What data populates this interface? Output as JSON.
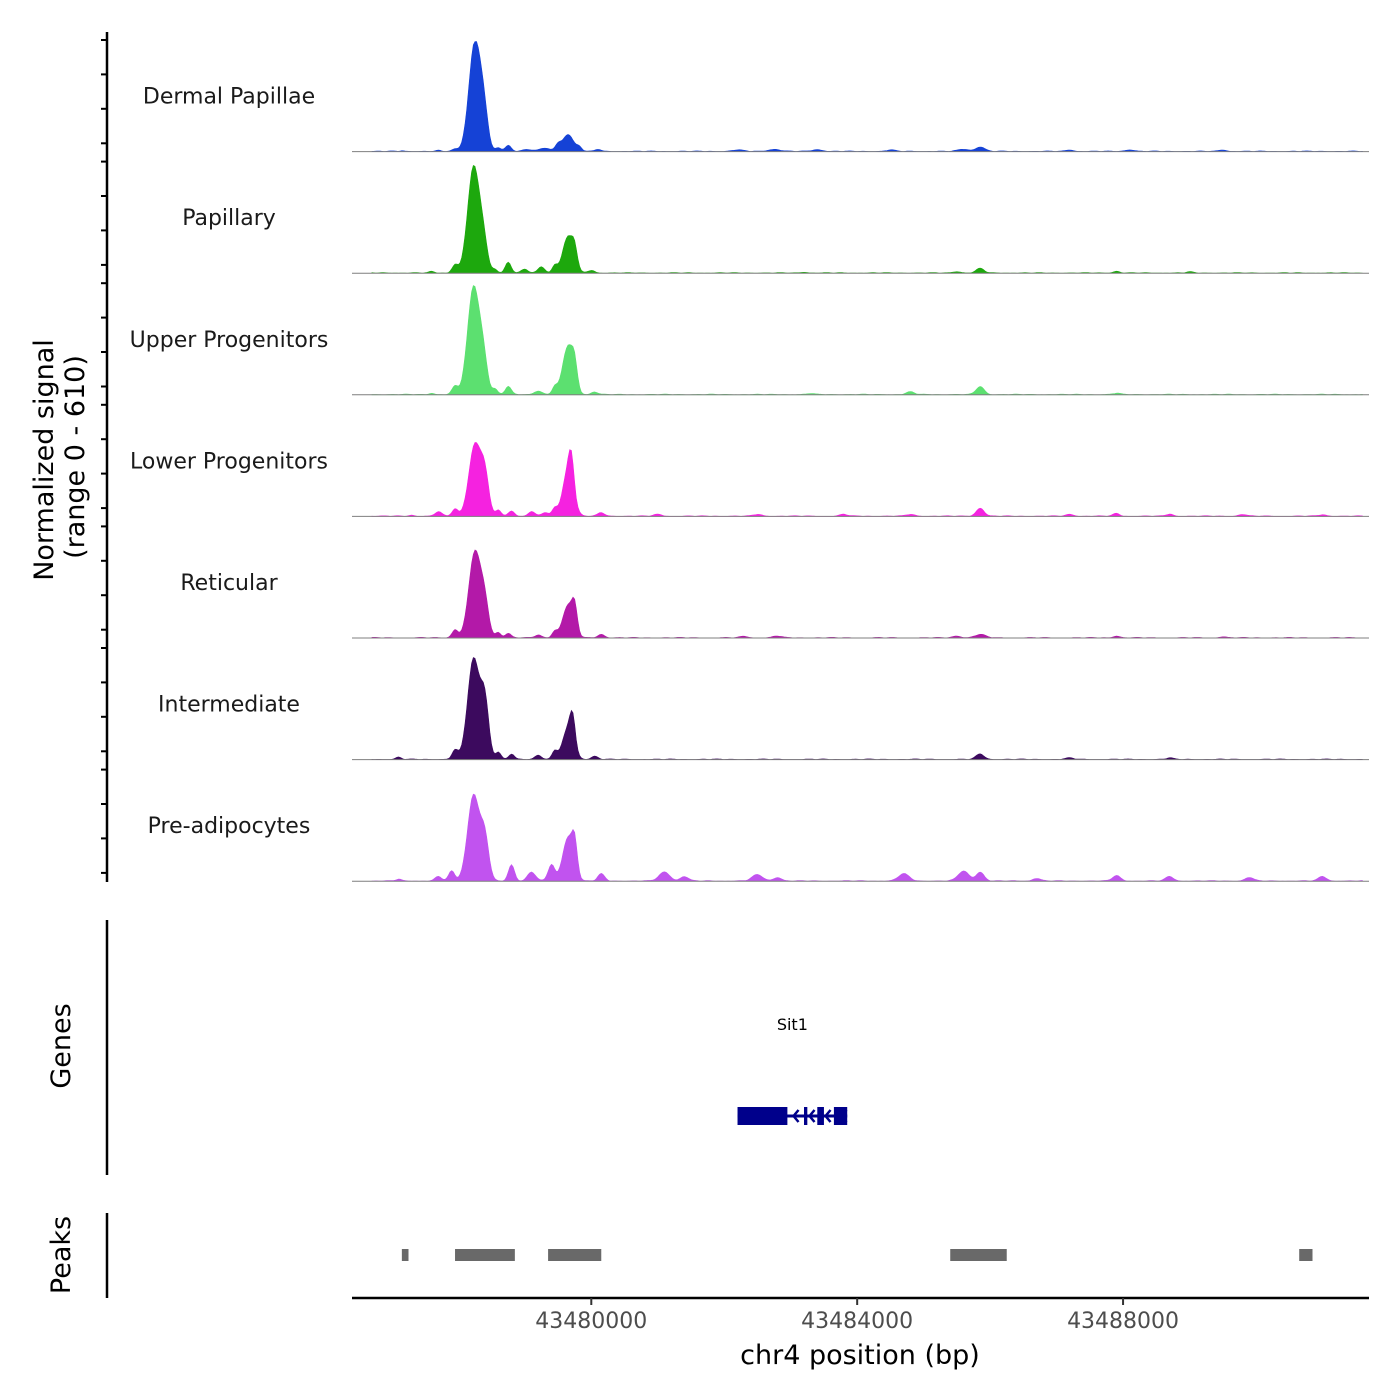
{
  "chart_data": {
    "type": "area",
    "title": "",
    "chromosome": "chr4",
    "xlabel": "chr4 position (bp)",
    "ylabel": "Normalized signal",
    "ylabel_range": "(range 0 - 610)",
    "yrange": [
      0,
      610
    ],
    "xlim": [
      43476400,
      43491700
    ],
    "x_ticks": [
      43480000,
      43484000,
      43488000
    ],
    "x_tick_labels": [
      "43480000",
      "43484000",
      "43488000"
    ],
    "series": [
      {
        "name": "Dermal Papillae",
        "color": "#1542d6",
        "peaks": [
          {
            "center": 43477150,
            "width": 30,
            "height": 4
          },
          {
            "center": 43477700,
            "width": 30,
            "height": 5
          },
          {
            "center": 43477950,
            "width": 45,
            "height": 12
          },
          {
            "center": 43478250,
            "width": 90,
            "height": 610
          },
          {
            "center": 43478390,
            "width": 60,
            "height": 160
          },
          {
            "center": 43478600,
            "width": 40,
            "height": 18
          },
          {
            "center": 43478750,
            "width": 45,
            "height": 35
          },
          {
            "center": 43479000,
            "width": 60,
            "height": 10
          },
          {
            "center": 43479300,
            "width": 120,
            "height": 15
          },
          {
            "center": 43479650,
            "width": 80,
            "height": 95
          },
          {
            "center": 43479500,
            "width": 40,
            "height": 30
          },
          {
            "center": 43479820,
            "width": 40,
            "height": 22
          },
          {
            "center": 43480100,
            "width": 40,
            "height": 12
          },
          {
            "center": 43482200,
            "width": 80,
            "height": 8
          },
          {
            "center": 43482750,
            "width": 90,
            "height": 12
          },
          {
            "center": 43483400,
            "width": 80,
            "height": 10
          },
          {
            "center": 43484500,
            "width": 60,
            "height": 8
          },
          {
            "center": 43485600,
            "width": 80,
            "height": 12
          },
          {
            "center": 43485850,
            "width": 70,
            "height": 25
          },
          {
            "center": 43487200,
            "width": 60,
            "height": 8
          },
          {
            "center": 43488100,
            "width": 70,
            "height": 9
          },
          {
            "center": 43489500,
            "width": 60,
            "height": 8
          }
        ]
      },
      {
        "name": "Papillary",
        "color": "#1da80d",
        "peaks": [
          {
            "center": 43477600,
            "width": 40,
            "height": 8
          },
          {
            "center": 43477950,
            "width": 45,
            "height": 45
          },
          {
            "center": 43478230,
            "width": 90,
            "height": 590
          },
          {
            "center": 43478380,
            "width": 60,
            "height": 140
          },
          {
            "center": 43478550,
            "width": 40,
            "height": 20
          },
          {
            "center": 43478750,
            "width": 45,
            "height": 60
          },
          {
            "center": 43479000,
            "width": 50,
            "height": 20
          },
          {
            "center": 43479250,
            "width": 50,
            "height": 35
          },
          {
            "center": 43479450,
            "width": 40,
            "height": 40
          },
          {
            "center": 43479650,
            "width": 80,
            "height": 200
          },
          {
            "center": 43479750,
            "width": 40,
            "height": 90
          },
          {
            "center": 43480000,
            "width": 50,
            "height": 15
          },
          {
            "center": 43485850,
            "width": 60,
            "height": 25
          },
          {
            "center": 43485500,
            "width": 60,
            "height": 8
          },
          {
            "center": 43487900,
            "width": 50,
            "height": 10
          },
          {
            "center": 43489000,
            "width": 50,
            "height": 6
          },
          {
            "center": 43483200,
            "width": 50,
            "height": 5
          }
        ]
      },
      {
        "name": "Upper Progenitors",
        "color": "#5ce070",
        "peaks": [
          {
            "center": 43477600,
            "width": 40,
            "height": 8
          },
          {
            "center": 43477950,
            "width": 45,
            "height": 45
          },
          {
            "center": 43478230,
            "width": 90,
            "height": 600
          },
          {
            "center": 43478380,
            "width": 60,
            "height": 160
          },
          {
            "center": 43478550,
            "width": 40,
            "height": 30
          },
          {
            "center": 43478750,
            "width": 45,
            "height": 45
          },
          {
            "center": 43479200,
            "width": 60,
            "height": 20
          },
          {
            "center": 43479450,
            "width": 40,
            "height": 40
          },
          {
            "center": 43479650,
            "width": 80,
            "height": 270
          },
          {
            "center": 43479750,
            "width": 40,
            "height": 110
          },
          {
            "center": 43480050,
            "width": 50,
            "height": 15
          },
          {
            "center": 43484800,
            "width": 60,
            "height": 15
          },
          {
            "center": 43485850,
            "width": 60,
            "height": 45
          },
          {
            "center": 43483300,
            "width": 50,
            "height": 6
          },
          {
            "center": 43487900,
            "width": 50,
            "height": 8
          }
        ]
      },
      {
        "name": "Lower Progenitors",
        "color": "#f522e0",
        "peaks": [
          {
            "center": 43477300,
            "width": 40,
            "height": 6
          },
          {
            "center": 43477700,
            "width": 50,
            "height": 25
          },
          {
            "center": 43477950,
            "width": 45,
            "height": 40
          },
          {
            "center": 43478250,
            "width": 90,
            "height": 400
          },
          {
            "center": 43478400,
            "width": 60,
            "height": 200
          },
          {
            "center": 43478600,
            "width": 40,
            "height": 35
          },
          {
            "center": 43478800,
            "width": 45,
            "height": 30
          },
          {
            "center": 43479100,
            "width": 50,
            "height": 25
          },
          {
            "center": 43479300,
            "width": 50,
            "height": 20
          },
          {
            "center": 43479450,
            "width": 40,
            "height": 40
          },
          {
            "center": 43479650,
            "width": 80,
            "height": 250
          },
          {
            "center": 43479700,
            "width": 40,
            "height": 160
          },
          {
            "center": 43480150,
            "width": 50,
            "height": 20
          },
          {
            "center": 43481000,
            "width": 60,
            "height": 10
          },
          {
            "center": 43482500,
            "width": 60,
            "height": 10
          },
          {
            "center": 43483800,
            "width": 60,
            "height": 10
          },
          {
            "center": 43484800,
            "width": 60,
            "height": 10
          },
          {
            "center": 43485850,
            "width": 60,
            "height": 45
          },
          {
            "center": 43487200,
            "width": 60,
            "height": 10
          },
          {
            "center": 43487900,
            "width": 50,
            "height": 15
          },
          {
            "center": 43488700,
            "width": 50,
            "height": 12
          },
          {
            "center": 43489800,
            "width": 60,
            "height": 10
          },
          {
            "center": 43491000,
            "width": 60,
            "height": 8
          }
        ]
      },
      {
        "name": "Reticular",
        "color": "#b319a8",
        "peaks": [
          {
            "center": 43477950,
            "width": 45,
            "height": 45
          },
          {
            "center": 43478250,
            "width": 90,
            "height": 480
          },
          {
            "center": 43478400,
            "width": 60,
            "height": 160
          },
          {
            "center": 43478600,
            "width": 40,
            "height": 30
          },
          {
            "center": 43478750,
            "width": 45,
            "height": 25
          },
          {
            "center": 43479200,
            "width": 50,
            "height": 15
          },
          {
            "center": 43479450,
            "width": 40,
            "height": 35
          },
          {
            "center": 43479650,
            "width": 80,
            "height": 180
          },
          {
            "center": 43479750,
            "width": 40,
            "height": 130
          },
          {
            "center": 43480150,
            "width": 50,
            "height": 20
          },
          {
            "center": 43482300,
            "width": 60,
            "height": 8
          },
          {
            "center": 43482800,
            "width": 60,
            "height": 10
          },
          {
            "center": 43485500,
            "width": 60,
            "height": 10
          },
          {
            "center": 43485850,
            "width": 80,
            "height": 18
          },
          {
            "center": 43487900,
            "width": 50,
            "height": 10
          },
          {
            "center": 43489500,
            "width": 50,
            "height": 6
          }
        ]
      },
      {
        "name": "Intermediate",
        "color": "#3c0a5e",
        "peaks": [
          {
            "center": 43477100,
            "width": 40,
            "height": 12
          },
          {
            "center": 43477950,
            "width": 45,
            "height": 50
          },
          {
            "center": 43478230,
            "width": 90,
            "height": 560
          },
          {
            "center": 43478400,
            "width": 60,
            "height": 300
          },
          {
            "center": 43478600,
            "width": 40,
            "height": 40
          },
          {
            "center": 43478800,
            "width": 40,
            "height": 30
          },
          {
            "center": 43479200,
            "width": 50,
            "height": 25
          },
          {
            "center": 43479450,
            "width": 40,
            "height": 45
          },
          {
            "center": 43479650,
            "width": 80,
            "height": 170
          },
          {
            "center": 43479720,
            "width": 40,
            "height": 150
          },
          {
            "center": 43480050,
            "width": 50,
            "height": 18
          },
          {
            "center": 43485850,
            "width": 60,
            "height": 30
          },
          {
            "center": 43487200,
            "width": 60,
            "height": 8
          },
          {
            "center": 43488700,
            "width": 50,
            "height": 8
          }
        ]
      },
      {
        "name": "Pre-adipocytes",
        "color": "#c153ef",
        "peaks": [
          {
            "center": 43477100,
            "width": 40,
            "height": 10
          },
          {
            "center": 43477700,
            "width": 50,
            "height": 25
          },
          {
            "center": 43477900,
            "width": 45,
            "height": 55
          },
          {
            "center": 43478230,
            "width": 90,
            "height": 480
          },
          {
            "center": 43478400,
            "width": 60,
            "height": 220
          },
          {
            "center": 43478800,
            "width": 45,
            "height": 90
          },
          {
            "center": 43479100,
            "width": 60,
            "height": 50
          },
          {
            "center": 43479400,
            "width": 50,
            "height": 90
          },
          {
            "center": 43479650,
            "width": 80,
            "height": 240
          },
          {
            "center": 43479750,
            "width": 40,
            "height": 160
          },
          {
            "center": 43480150,
            "width": 50,
            "height": 40
          },
          {
            "center": 43481100,
            "width": 80,
            "height": 50
          },
          {
            "center": 43481400,
            "width": 60,
            "height": 25
          },
          {
            "center": 43482500,
            "width": 80,
            "height": 35
          },
          {
            "center": 43482800,
            "width": 60,
            "height": 20
          },
          {
            "center": 43484700,
            "width": 80,
            "height": 40
          },
          {
            "center": 43485600,
            "width": 80,
            "height": 55
          },
          {
            "center": 43485850,
            "width": 60,
            "height": 50
          },
          {
            "center": 43486700,
            "width": 60,
            "height": 15
          },
          {
            "center": 43487900,
            "width": 60,
            "height": 30
          },
          {
            "center": 43488700,
            "width": 60,
            "height": 25
          },
          {
            "center": 43489900,
            "width": 60,
            "height": 20
          },
          {
            "center": 43491000,
            "width": 60,
            "height": 25
          }
        ]
      }
    ],
    "genes_track": {
      "title": "Genes",
      "genes": [
        {
          "name": "Sit1",
          "start": 43482200,
          "end": 43483850,
          "color": "#00008b",
          "exons": [
            [
              43482200,
              43482950
            ],
            [
              43483200,
              43483250
            ],
            [
              43483400,
              43483500
            ],
            [
              43483650,
              43483850
            ]
          ]
        }
      ]
    },
    "peaks_track": {
      "title": "Peaks",
      "color": "#696969",
      "regions": [
        [
          43477150,
          43477250
        ],
        [
          43477950,
          43478850
        ],
        [
          43479350,
          43480150
        ],
        [
          43485400,
          43486250
        ],
        [
          43490650,
          43490850
        ]
      ]
    }
  }
}
